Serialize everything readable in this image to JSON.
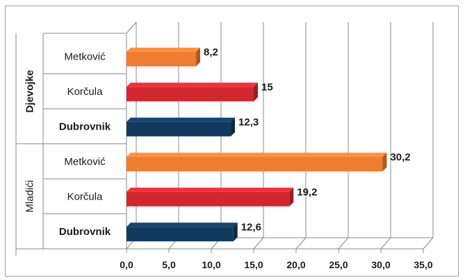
{
  "chart_data": {
    "type": "bar",
    "orientation": "horizontal",
    "xlim": [
      0,
      35
    ],
    "x_ticks": [
      "0,0",
      "5,0",
      "10,0",
      "15,0",
      "20,0",
      "25,0",
      "30,0",
      "35,0"
    ],
    "grid": true,
    "groups": [
      {
        "name": "Djevojke",
        "bold": true,
        "rows": [
          {
            "category": "Metković",
            "value": 8.2,
            "label": "8,2",
            "color": "#f07c31",
            "bold": false
          },
          {
            "category": "Korčula",
            "value": 15,
            "label": "15",
            "color": "#d0282e",
            "bold": false
          },
          {
            "category": "Dubrovnik",
            "value": 12.3,
            "label": "12,3",
            "color": "#123a5e",
            "bold": true
          }
        ]
      },
      {
        "name": "Mladići",
        "bold": false,
        "rows": [
          {
            "category": "Metković",
            "value": 30.2,
            "label": "30,2",
            "color": "#f07c31",
            "bold": false
          },
          {
            "category": "Korčula",
            "value": 19.2,
            "label": "19,2",
            "color": "#d0282e",
            "bold": false
          },
          {
            "category": "Dubrovnik",
            "value": 12.6,
            "label": "12,6",
            "color": "#123a5e",
            "bold": true
          }
        ]
      }
    ]
  }
}
